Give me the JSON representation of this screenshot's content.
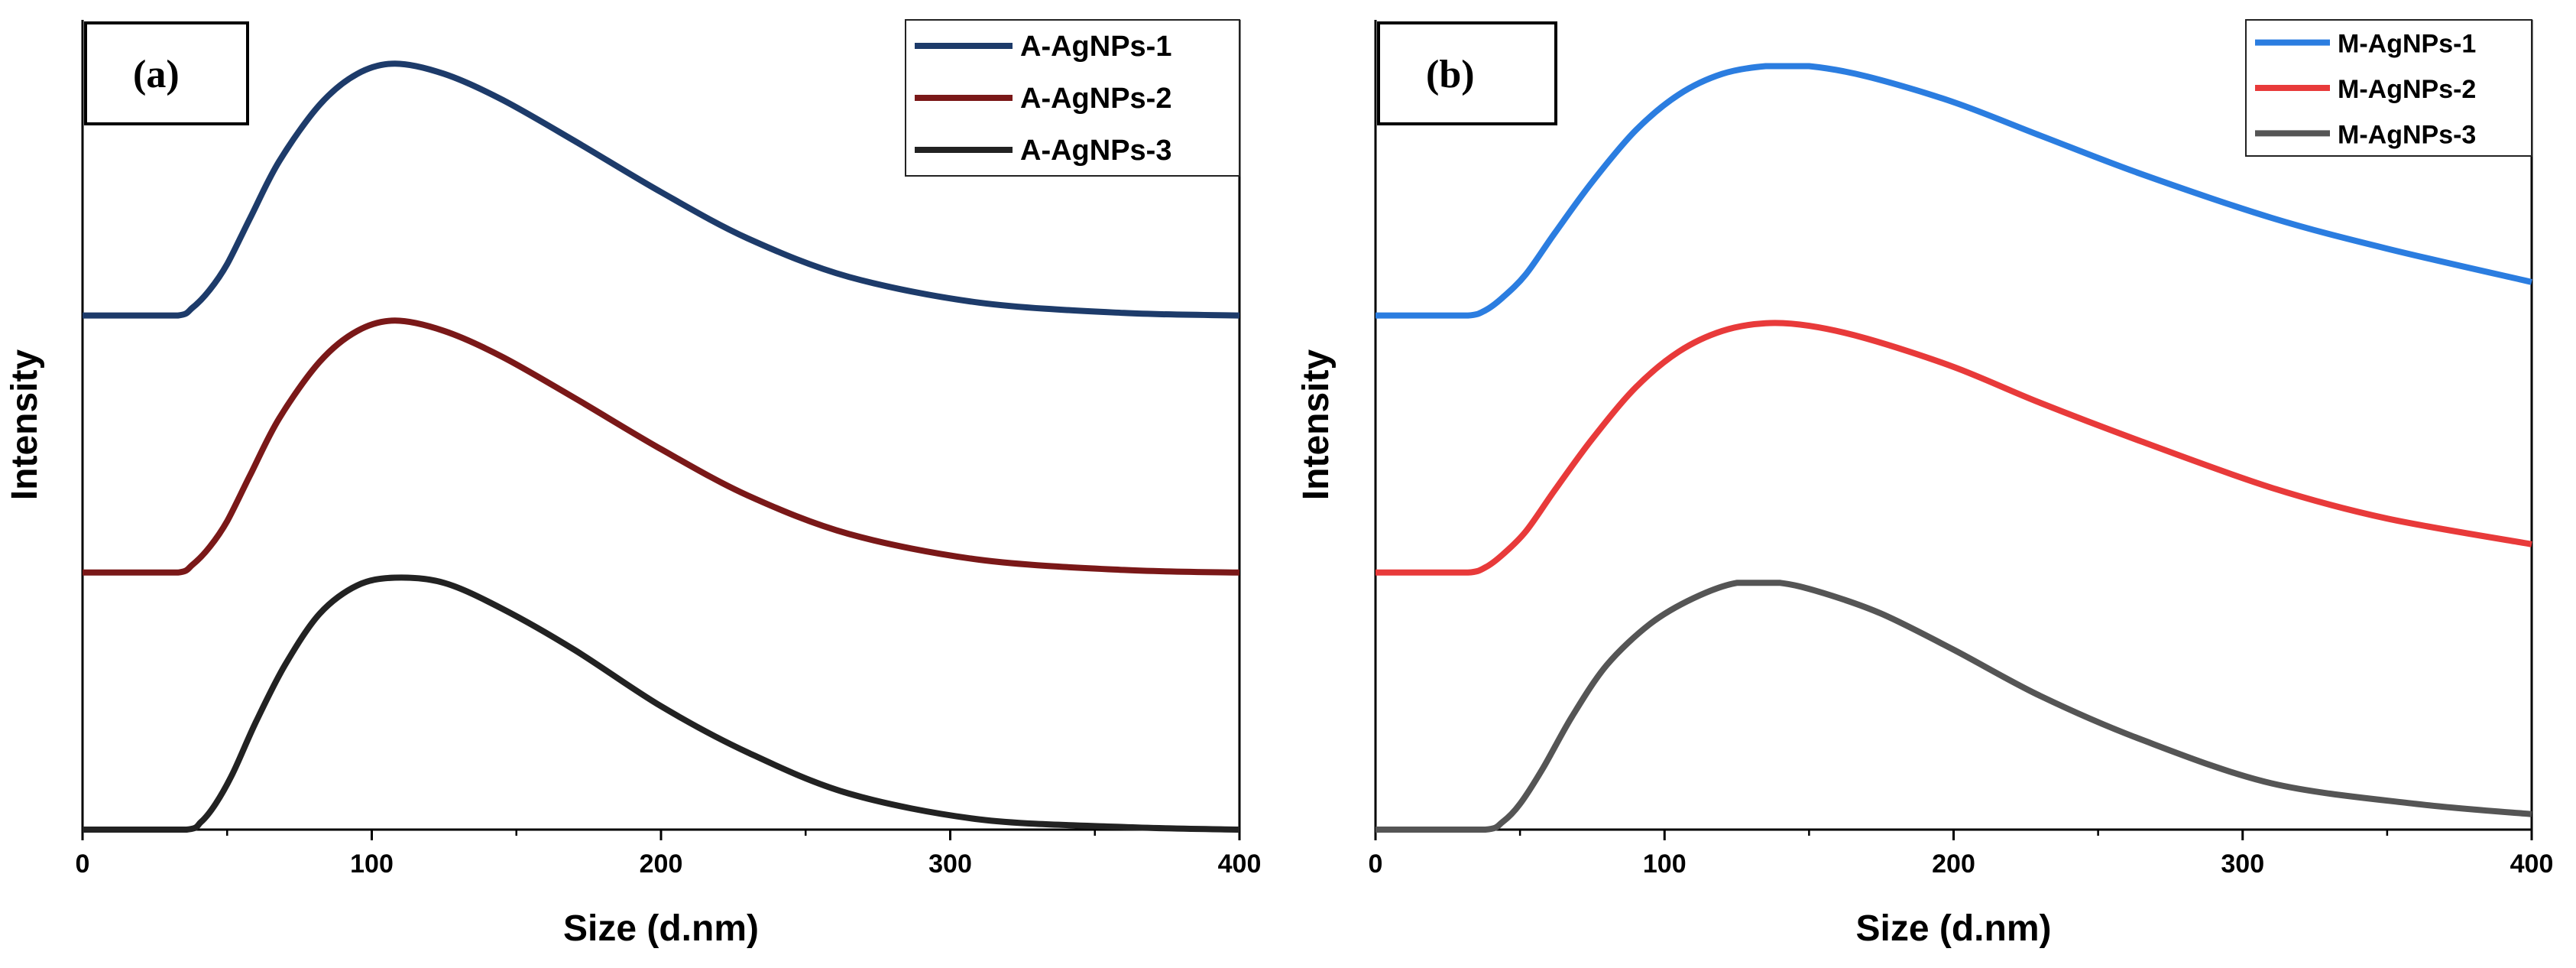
{
  "chart_data": [
    {
      "type": "line",
      "panel_label": "(a)",
      "xlabel": "Size (d.nm)",
      "ylabel": "Intensity",
      "xlim": [
        0,
        400
      ],
      "xticks": [
        0,
        100,
        200,
        300,
        400
      ],
      "xtick_labels": [
        "0",
        "100",
        "200",
        "300",
        "400"
      ],
      "ylim": [
        0,
        3.15
      ],
      "grid": false,
      "legend_position": "top-right",
      "series": [
        {
          "name": "A-AgNPs-1",
          "color": "#1d3b6a",
          "offset": 2.0,
          "x": [
            0,
            15,
            33,
            38,
            44,
            50,
            58,
            68,
            82,
            95,
            108,
            125,
            145,
            170,
            200,
            230,
            265,
            310,
            360,
            400
          ],
          "values": [
            0,
            0,
            0,
            0.03,
            0.1,
            0.2,
            0.38,
            0.6,
            0.82,
            0.94,
            0.98,
            0.94,
            0.84,
            0.68,
            0.48,
            0.3,
            0.15,
            0.05,
            0.01,
            0
          ]
        },
        {
          "name": "A-AgNPs-2",
          "color": "#7a1818",
          "offset": 1.0,
          "x": [
            0,
            15,
            33,
            38,
            44,
            50,
            58,
            68,
            82,
            95,
            108,
            125,
            145,
            170,
            200,
            230,
            265,
            310,
            360,
            400
          ],
          "values": [
            0,
            0,
            0,
            0.03,
            0.1,
            0.2,
            0.38,
            0.6,
            0.82,
            0.94,
            0.98,
            0.94,
            0.84,
            0.68,
            0.48,
            0.3,
            0.15,
            0.05,
            0.01,
            0
          ]
        },
        {
          "name": "A-AgNPs-3",
          "color": "#222222",
          "offset": 0.0,
          "x": [
            0,
            15,
            36,
            41,
            46,
            52,
            60,
            70,
            82,
            95,
            108,
            125,
            145,
            170,
            200,
            230,
            265,
            310,
            360,
            400
          ],
          "values": [
            0,
            0,
            0,
            0.03,
            0.1,
            0.22,
            0.42,
            0.64,
            0.84,
            0.95,
            0.98,
            0.96,
            0.86,
            0.7,
            0.48,
            0.3,
            0.14,
            0.04,
            0.01,
            0
          ]
        }
      ],
      "legend": [
        "A-AgNPs-1",
        "A-AgNPs-2",
        "A-AgNPs-3"
      ]
    },
    {
      "type": "line",
      "panel_label": "(b)",
      "xlabel": "Size (d.nm)",
      "ylabel": "Intensity",
      "xlim": [
        0,
        400
      ],
      "xticks": [
        0,
        100,
        200,
        300,
        400
      ],
      "xtick_labels": [
        "0",
        "100",
        "200",
        "300",
        "400"
      ],
      "ylim": [
        0,
        3.15
      ],
      "grid": false,
      "legend_position": "top-right",
      "series": [
        {
          "name": "M-AgNPs-1",
          "color": "#2b7de0",
          "offset": 2.0,
          "x": [
            0,
            15,
            32,
            38,
            44,
            52,
            62,
            75,
            90,
            105,
            120,
            135,
            150,
            170,
            200,
            230,
            265,
            310,
            350,
            400
          ],
          "values": [
            0,
            0,
            0,
            0.02,
            0.07,
            0.16,
            0.32,
            0.52,
            0.72,
            0.86,
            0.94,
            0.97,
            0.97,
            0.93,
            0.83,
            0.7,
            0.55,
            0.38,
            0.26,
            0.13
          ]
        },
        {
          "name": "M-AgNPs-2",
          "color": "#e83a3a",
          "offset": 1.0,
          "x": [
            0,
            15,
            32,
            38,
            44,
            52,
            62,
            75,
            90,
            105,
            120,
            135,
            150,
            170,
            200,
            230,
            265,
            310,
            350,
            400
          ],
          "values": [
            0,
            0,
            0,
            0.02,
            0.07,
            0.16,
            0.32,
            0.52,
            0.72,
            0.86,
            0.94,
            0.97,
            0.96,
            0.91,
            0.8,
            0.66,
            0.51,
            0.33,
            0.21,
            0.11
          ]
        },
        {
          "name": "M-AgNPs-3",
          "color": "#555555",
          "offset": 0.0,
          "x": [
            0,
            15,
            38,
            44,
            50,
            58,
            68,
            80,
            95,
            110,
            125,
            140,
            155,
            175,
            200,
            230,
            265,
            310,
            360,
            400
          ],
          "values": [
            0,
            0,
            0,
            0.03,
            0.1,
            0.24,
            0.44,
            0.64,
            0.8,
            0.9,
            0.96,
            0.96,
            0.92,
            0.84,
            0.7,
            0.52,
            0.35,
            0.18,
            0.1,
            0.06
          ]
        }
      ],
      "legend": [
        "M-AgNPs-1",
        "M-AgNPs-2",
        "M-AgNPs-3"
      ]
    }
  ]
}
